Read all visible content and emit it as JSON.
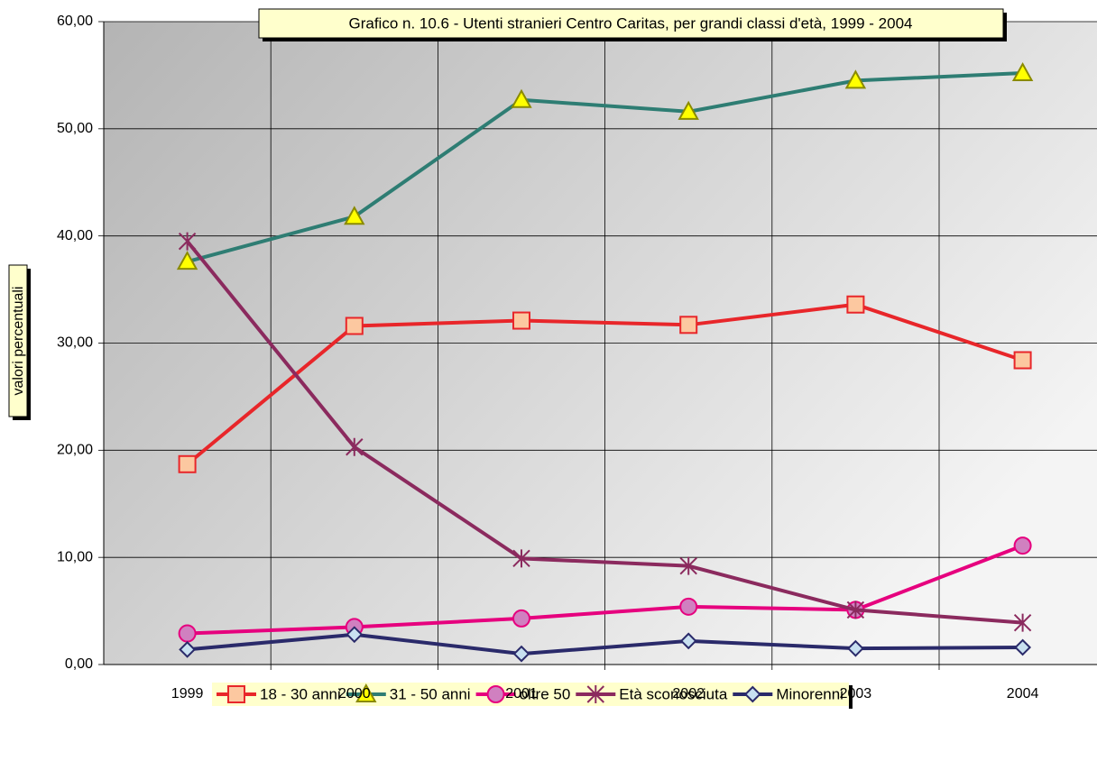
{
  "chart_data": {
    "type": "line",
    "title": "Grafico n. 10.6 - Utenti stranieri Centro Caritas, per grandi classi d'età, 1999 - 2004",
    "y_label": "valori percentuali",
    "categories": [
      "1999",
      "2000",
      "2001",
      "2002",
      "2003",
      "2004"
    ],
    "ylim": [
      0,
      60
    ],
    "yticks": [
      {
        "value": 0,
        "label": "0,00"
      },
      {
        "value": 10,
        "label": "10,00"
      },
      {
        "value": 20,
        "label": "20,00"
      },
      {
        "value": 30,
        "label": "30,00"
      },
      {
        "value": 40,
        "label": "40,00"
      },
      {
        "value": 50,
        "label": "50,00"
      },
      {
        "value": 60,
        "label": "60,00"
      }
    ],
    "grid": true,
    "legend": "bottom",
    "series": [
      {
        "name": "18 - 30 anni",
        "color": "#e8262a",
        "marker": "square",
        "marker_fill": "#fcc8a0",
        "marker_stroke": "#e8262a",
        "values": [
          18.7,
          31.6,
          32.1,
          31.7,
          33.6,
          28.4
        ]
      },
      {
        "name": "31 - 50 anni",
        "color": "#2e7d73",
        "marker": "triangle",
        "marker_fill": "#ffff00",
        "marker_stroke": "#8a8a00",
        "values": [
          37.6,
          41.8,
          52.7,
          51.6,
          54.5,
          55.2
        ]
      },
      {
        "name": "oltre 50",
        "color": "#e6007e",
        "marker": "circle",
        "marker_fill": "#d080c0",
        "marker_stroke": "#e6007e",
        "values": [
          2.9,
          3.5,
          4.3,
          5.4,
          5.1,
          11.1
        ]
      },
      {
        "name": "Età sconosciuta",
        "color": "#8b2a5e",
        "marker": "star",
        "marker_fill": "none",
        "marker_stroke": "#8b2a5e",
        "values": [
          39.5,
          20.3,
          9.9,
          9.2,
          5.1,
          3.9
        ]
      },
      {
        "name": "Minorenni",
        "color": "#2a2a6a",
        "marker": "diamond",
        "marker_fill": "#c8e0f0",
        "marker_stroke": "#2a2a6a",
        "values": [
          1.4,
          2.8,
          1.0,
          2.2,
          1.5,
          1.6
        ]
      }
    ]
  }
}
